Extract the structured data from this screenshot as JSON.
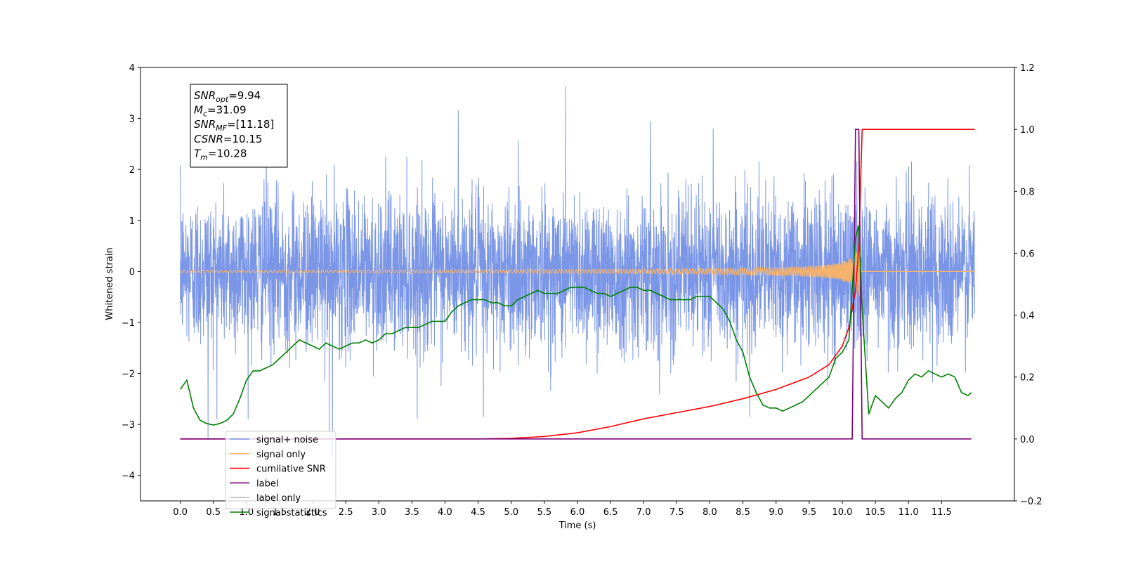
{
  "chart_data": {
    "type": "line",
    "title": "",
    "xlabel": "Time (s)",
    "ylabel": "Whitened strain",
    "y2label": "",
    "xlim": [
      -0.6,
      12.6
    ],
    "ylim": [
      -4.5,
      4
    ],
    "y2lim": [
      -0.2,
      1.2
    ],
    "grid": false,
    "legend_placement": "lower-left",
    "x_ticks": [
      0.0,
      0.5,
      1.0,
      1.5,
      2.0,
      2.5,
      3.0,
      3.5,
      4.0,
      4.5,
      5.0,
      5.5,
      6.0,
      6.5,
      7.0,
      7.5,
      8.0,
      8.5,
      9.0,
      9.5,
      10.0,
      10.5,
      11.0,
      11.5
    ],
    "x_tick_labels": [
      "0.0",
      "0.5",
      "1.0",
      "1.5",
      "2.0",
      "2.5",
      "3.0",
      "3.5",
      "4.0",
      "4.5",
      "5.0",
      "5.5",
      "6.0",
      "6.5",
      "7.0",
      "7.5",
      "8.0",
      "8.5",
      "9.0",
      "9.5",
      "10.0",
      "10.5",
      "11.0",
      "11.5"
    ],
    "y_ticks": [
      4,
      3,
      2,
      1,
      0,
      -1,
      -2,
      -3,
      -4
    ],
    "y_tick_labels": [
      "4",
      "3",
      "2",
      "1",
      "0",
      "−1",
      "−2",
      "−3",
      "−4"
    ],
    "y2_ticks": [
      1.2,
      1.0,
      0.8,
      0.6,
      0.4,
      0.2,
      0.0,
      -0.2
    ],
    "y2_tick_labels": [
      "1.2",
      "1.0",
      "0.8",
      "0.6",
      "0.4",
      "0.2",
      "0.0",
      "−0.2"
    ],
    "annotation": [
      {
        "name": "SNR",
        "sub": "opt",
        "value": "=9.94"
      },
      {
        "name": "M",
        "sub": "c",
        "value": "=31.09"
      },
      {
        "name": "SNR",
        "sub": "MF",
        "value": "=[11.18]"
      },
      {
        "name": "CSNR",
        "sub": "",
        "value": "=10.15"
      },
      {
        "name": "T",
        "sub": "m",
        "value": "=10.28"
      }
    ],
    "series": [
      {
        "name": "signal+ noise",
        "axis": "left",
        "color": "#7b96e6",
        "kind": "noise",
        "x_range": [
          0.0,
          12.0
        ],
        "amplitude_sigma": 0.75,
        "peak": 3.62,
        "trough": -3.3
      },
      {
        "name": "signal only",
        "axis": "left",
        "color": "#f5b26b",
        "kind": "chirp",
        "merger_time": 10.28,
        "peak_amplitude": 0.95
      },
      {
        "name": "cumilative SNR",
        "axis": "right",
        "color": "#ff0000",
        "x": [
          0.0,
          4.5,
          5.0,
          5.5,
          6.0,
          6.5,
          7.0,
          7.5,
          8.0,
          8.5,
          9.0,
          9.5,
          9.8,
          10.0,
          10.1,
          10.2,
          10.25,
          10.3,
          12.0
        ],
        "y": [
          0.0,
          0.0,
          0.002,
          0.008,
          0.02,
          0.04,
          0.065,
          0.085,
          0.105,
          0.13,
          0.16,
          0.2,
          0.24,
          0.3,
          0.36,
          0.48,
          0.62,
          1.0,
          1.0
        ]
      },
      {
        "name": "label",
        "axis": "right",
        "color": "#7a007a",
        "x": [
          0.0,
          10.15,
          10.2,
          10.25,
          10.3,
          10.33,
          11.95
        ],
        "y": [
          0.0,
          0.0,
          1.0,
          1.0,
          0.0,
          0.0,
          0.0
        ]
      },
      {
        "name": "label only",
        "axis": "right",
        "color": "#c0c0c0",
        "hidden": true
      },
      {
        "name": "signal statistics",
        "axis": "right",
        "color": "#008000",
        "x": [
          0.0,
          0.1,
          0.2,
          0.3,
          0.4,
          0.5,
          0.6,
          0.7,
          0.8,
          0.9,
          1.0,
          1.1,
          1.2,
          1.3,
          1.4,
          1.5,
          1.6,
          1.7,
          1.8,
          1.9,
          2.0,
          2.1,
          2.2,
          2.3,
          2.4,
          2.5,
          2.6,
          2.7,
          2.8,
          2.9,
          3.0,
          3.1,
          3.2,
          3.3,
          3.4,
          3.5,
          3.6,
          3.7,
          3.8,
          3.9,
          4.0,
          4.1,
          4.2,
          4.3,
          4.4,
          4.5,
          4.6,
          4.7,
          4.8,
          4.9,
          5.0,
          5.1,
          5.2,
          5.3,
          5.4,
          5.5,
          5.6,
          5.7,
          5.8,
          5.9,
          6.0,
          6.1,
          6.2,
          6.3,
          6.4,
          6.5,
          6.6,
          6.7,
          6.8,
          6.9,
          7.0,
          7.1,
          7.2,
          7.3,
          7.4,
          7.5,
          7.6,
          7.7,
          7.8,
          7.9,
          8.0,
          8.1,
          8.2,
          8.3,
          8.4,
          8.5,
          8.6,
          8.7,
          8.8,
          8.9,
          9.0,
          9.1,
          9.2,
          9.3,
          9.4,
          9.5,
          9.6,
          9.7,
          9.8,
          9.9,
          10.0,
          10.1,
          10.2,
          10.25,
          10.3,
          10.4,
          10.5,
          10.6,
          10.7,
          10.8,
          10.9,
          11.0,
          11.1,
          11.2,
          11.3,
          11.4,
          11.5,
          11.6,
          11.7,
          11.8,
          11.9,
          11.95
        ],
        "y": [
          0.16,
          0.19,
          0.1,
          0.06,
          0.05,
          0.045,
          0.05,
          0.06,
          0.08,
          0.13,
          0.19,
          0.22,
          0.22,
          0.23,
          0.24,
          0.26,
          0.28,
          0.3,
          0.32,
          0.31,
          0.3,
          0.29,
          0.31,
          0.3,
          0.29,
          0.3,
          0.31,
          0.31,
          0.32,
          0.31,
          0.32,
          0.34,
          0.34,
          0.35,
          0.36,
          0.36,
          0.36,
          0.37,
          0.38,
          0.38,
          0.38,
          0.41,
          0.43,
          0.44,
          0.45,
          0.45,
          0.45,
          0.44,
          0.44,
          0.43,
          0.43,
          0.45,
          0.46,
          0.47,
          0.48,
          0.47,
          0.47,
          0.47,
          0.48,
          0.49,
          0.49,
          0.49,
          0.48,
          0.47,
          0.47,
          0.46,
          0.47,
          0.48,
          0.49,
          0.49,
          0.48,
          0.48,
          0.47,
          0.46,
          0.45,
          0.45,
          0.45,
          0.45,
          0.46,
          0.46,
          0.46,
          0.44,
          0.42,
          0.38,
          0.32,
          0.28,
          0.2,
          0.15,
          0.11,
          0.1,
          0.1,
          0.09,
          0.1,
          0.11,
          0.12,
          0.14,
          0.16,
          0.18,
          0.2,
          0.26,
          0.28,
          0.32,
          0.65,
          0.69,
          0.42,
          0.08,
          0.14,
          0.12,
          0.1,
          0.13,
          0.15,
          0.19,
          0.21,
          0.2,
          0.22,
          0.21,
          0.2,
          0.21,
          0.2,
          0.15,
          0.14,
          0.15
        ]
      }
    ]
  }
}
